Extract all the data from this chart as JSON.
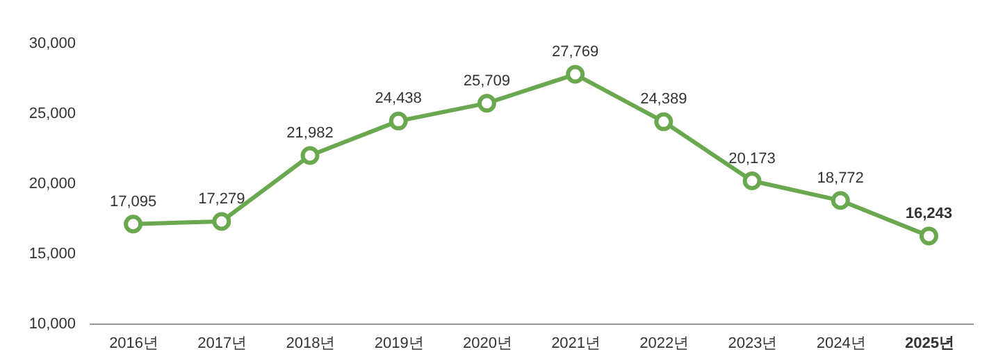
{
  "chart_data": {
    "type": "line",
    "categories": [
      "2016년",
      "2017년",
      "2018년",
      "2019년",
      "2020년",
      "2021년",
      "2022년",
      "2023년",
      "2024년",
      "2025년"
    ],
    "series": [
      {
        "color": "#6aa84f",
        "values": [
          17095,
          17279,
          21982,
          24438,
          25709,
          27769,
          24389,
          20173,
          18772,
          16243
        ],
        "value_labels": [
          "17,095",
          "17,279",
          "21,982",
          "24,438",
          "25,709",
          "27,769",
          "24,389",
          "20,173",
          "18,772",
          "16,243"
        ]
      }
    ],
    "ylim": [
      10000,
      30000
    ],
    "yticks": [
      {
        "value": 10000,
        "label": "10,000"
      },
      {
        "value": 15000,
        "label": "15,000"
      },
      {
        "value": 20000,
        "label": "20,000"
      },
      {
        "value": 25000,
        "label": "25,000"
      },
      {
        "value": 30000,
        "label": "30,000"
      }
    ],
    "marker": "circle",
    "grid": false
  }
}
